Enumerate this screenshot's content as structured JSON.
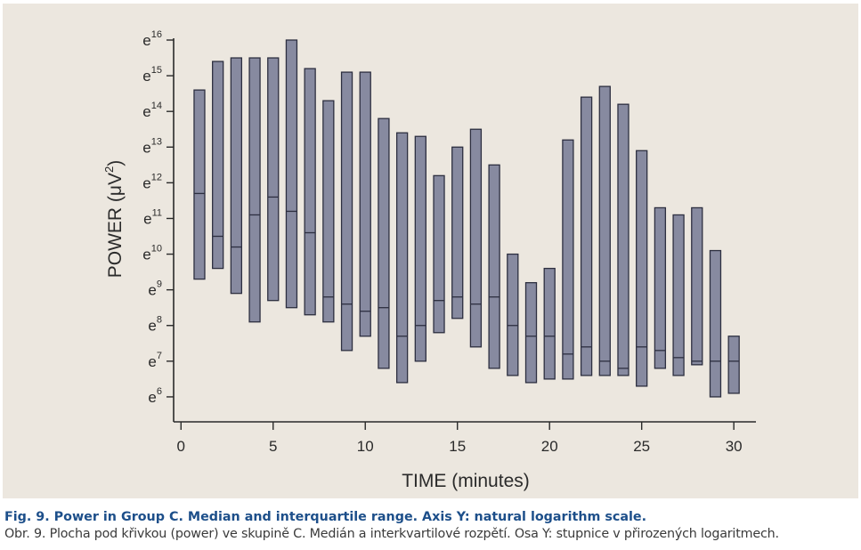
{
  "chart_data": {
    "type": "range_bar",
    "xlabel": "TIME  (minutes)",
    "ylabel_main": "POWER",
    "ylabel_unit_open": "(μV",
    "ylabel_unit_sup": "2",
    "ylabel_unit_close": ")",
    "y_scale": "natural log",
    "ylim": [
      5.3,
      16.0
    ],
    "xlim": [
      -0.4,
      31.2
    ],
    "x_ticks": [
      0,
      5,
      10,
      15,
      20,
      25,
      30
    ],
    "y_ticks": [
      {
        "base": "e",
        "exp": "6"
      },
      {
        "base": "e",
        "exp": "7"
      },
      {
        "base": "e",
        "exp": "8"
      },
      {
        "base": "e",
        "exp": "9"
      },
      {
        "base": "e",
        "exp": "10"
      },
      {
        "base": "e",
        "exp": "11"
      },
      {
        "base": "e",
        "exp": "12"
      },
      {
        "base": "e",
        "exp": "13"
      },
      {
        "base": "e",
        "exp": "14"
      },
      {
        "base": "e",
        "exp": "15"
      },
      {
        "base": "e",
        "exp": "16"
      }
    ],
    "boxes": [
      {
        "x": 1,
        "q1": 9.3,
        "median": 11.7,
        "q3": 14.6
      },
      {
        "x": 2,
        "q1": 9.6,
        "median": 10.5,
        "q3": 15.4
      },
      {
        "x": 3,
        "q1": 8.9,
        "median": 10.2,
        "q3": 15.5
      },
      {
        "x": 4,
        "q1": 8.1,
        "median": 11.1,
        "q3": 15.5
      },
      {
        "x": 5,
        "q1": 8.7,
        "median": 11.6,
        "q3": 15.5
      },
      {
        "x": 6,
        "q1": 8.5,
        "median": 11.2,
        "q3": 16.0
      },
      {
        "x": 7,
        "q1": 8.3,
        "median": 10.6,
        "q3": 15.2
      },
      {
        "x": 8,
        "q1": 8.1,
        "median": 8.8,
        "q3": 14.3
      },
      {
        "x": 9,
        "q1": 7.3,
        "median": 8.6,
        "q3": 15.1
      },
      {
        "x": 10,
        "q1": 7.7,
        "median": 8.4,
        "q3": 15.1
      },
      {
        "x": 11,
        "q1": 6.8,
        "median": 8.5,
        "q3": 13.8
      },
      {
        "x": 12,
        "q1": 6.4,
        "median": 7.7,
        "q3": 13.4
      },
      {
        "x": 13,
        "q1": 7.0,
        "median": 8.0,
        "q3": 13.3
      },
      {
        "x": 14,
        "q1": 7.8,
        "median": 8.7,
        "q3": 12.2
      },
      {
        "x": 15,
        "q1": 8.2,
        "median": 8.8,
        "q3": 13.0
      },
      {
        "x": 16,
        "q1": 7.4,
        "median": 8.6,
        "q3": 13.5
      },
      {
        "x": 17,
        "q1": 6.8,
        "median": 8.8,
        "q3": 12.5
      },
      {
        "x": 18,
        "q1": 6.6,
        "median": 8.0,
        "q3": 10.0
      },
      {
        "x": 19,
        "q1": 6.4,
        "median": 7.7,
        "q3": 9.2
      },
      {
        "x": 20,
        "q1": 6.5,
        "median": 7.7,
        "q3": 9.6
      },
      {
        "x": 21,
        "q1": 6.5,
        "median": 7.2,
        "q3": 13.2
      },
      {
        "x": 22,
        "q1": 6.6,
        "median": 7.4,
        "q3": 14.4
      },
      {
        "x": 23,
        "q1": 6.6,
        "median": 7.0,
        "q3": 14.7
      },
      {
        "x": 24,
        "q1": 6.6,
        "median": 6.8,
        "q3": 14.2
      },
      {
        "x": 25,
        "q1": 6.3,
        "median": 7.4,
        "q3": 12.9
      },
      {
        "x": 26,
        "q1": 6.8,
        "median": 7.3,
        "q3": 11.3
      },
      {
        "x": 27,
        "q1": 6.6,
        "median": 7.1,
        "q3": 11.1
      },
      {
        "x": 28,
        "q1": 6.9,
        "median": 7.0,
        "q3": 11.3
      },
      {
        "x": 29,
        "q1": 6.0,
        "median": 7.0,
        "q3": 10.1
      },
      {
        "x": 30,
        "q1": 6.1,
        "median": 7.0,
        "q3": 7.7
      }
    ]
  },
  "caption": {
    "english": "Fig. 9. Power in Group C. Median and interquartile range. Axis Y: natural logarithm scale.",
    "czech": "Obr. 9. Plocha pod křivkou (power) ve skupině C. Medián a interkvartilové rozpětí. Osa Y: stupnice v přirozených logaritmech."
  },
  "colors": {
    "panel_background": "#ece7df",
    "bar_fill": "#878aa0",
    "bar_stroke": "#2d2f40",
    "axis": "#2a2a2a",
    "caption_english": "#1d4f8a",
    "caption_czech": "#3a3a3a"
  }
}
